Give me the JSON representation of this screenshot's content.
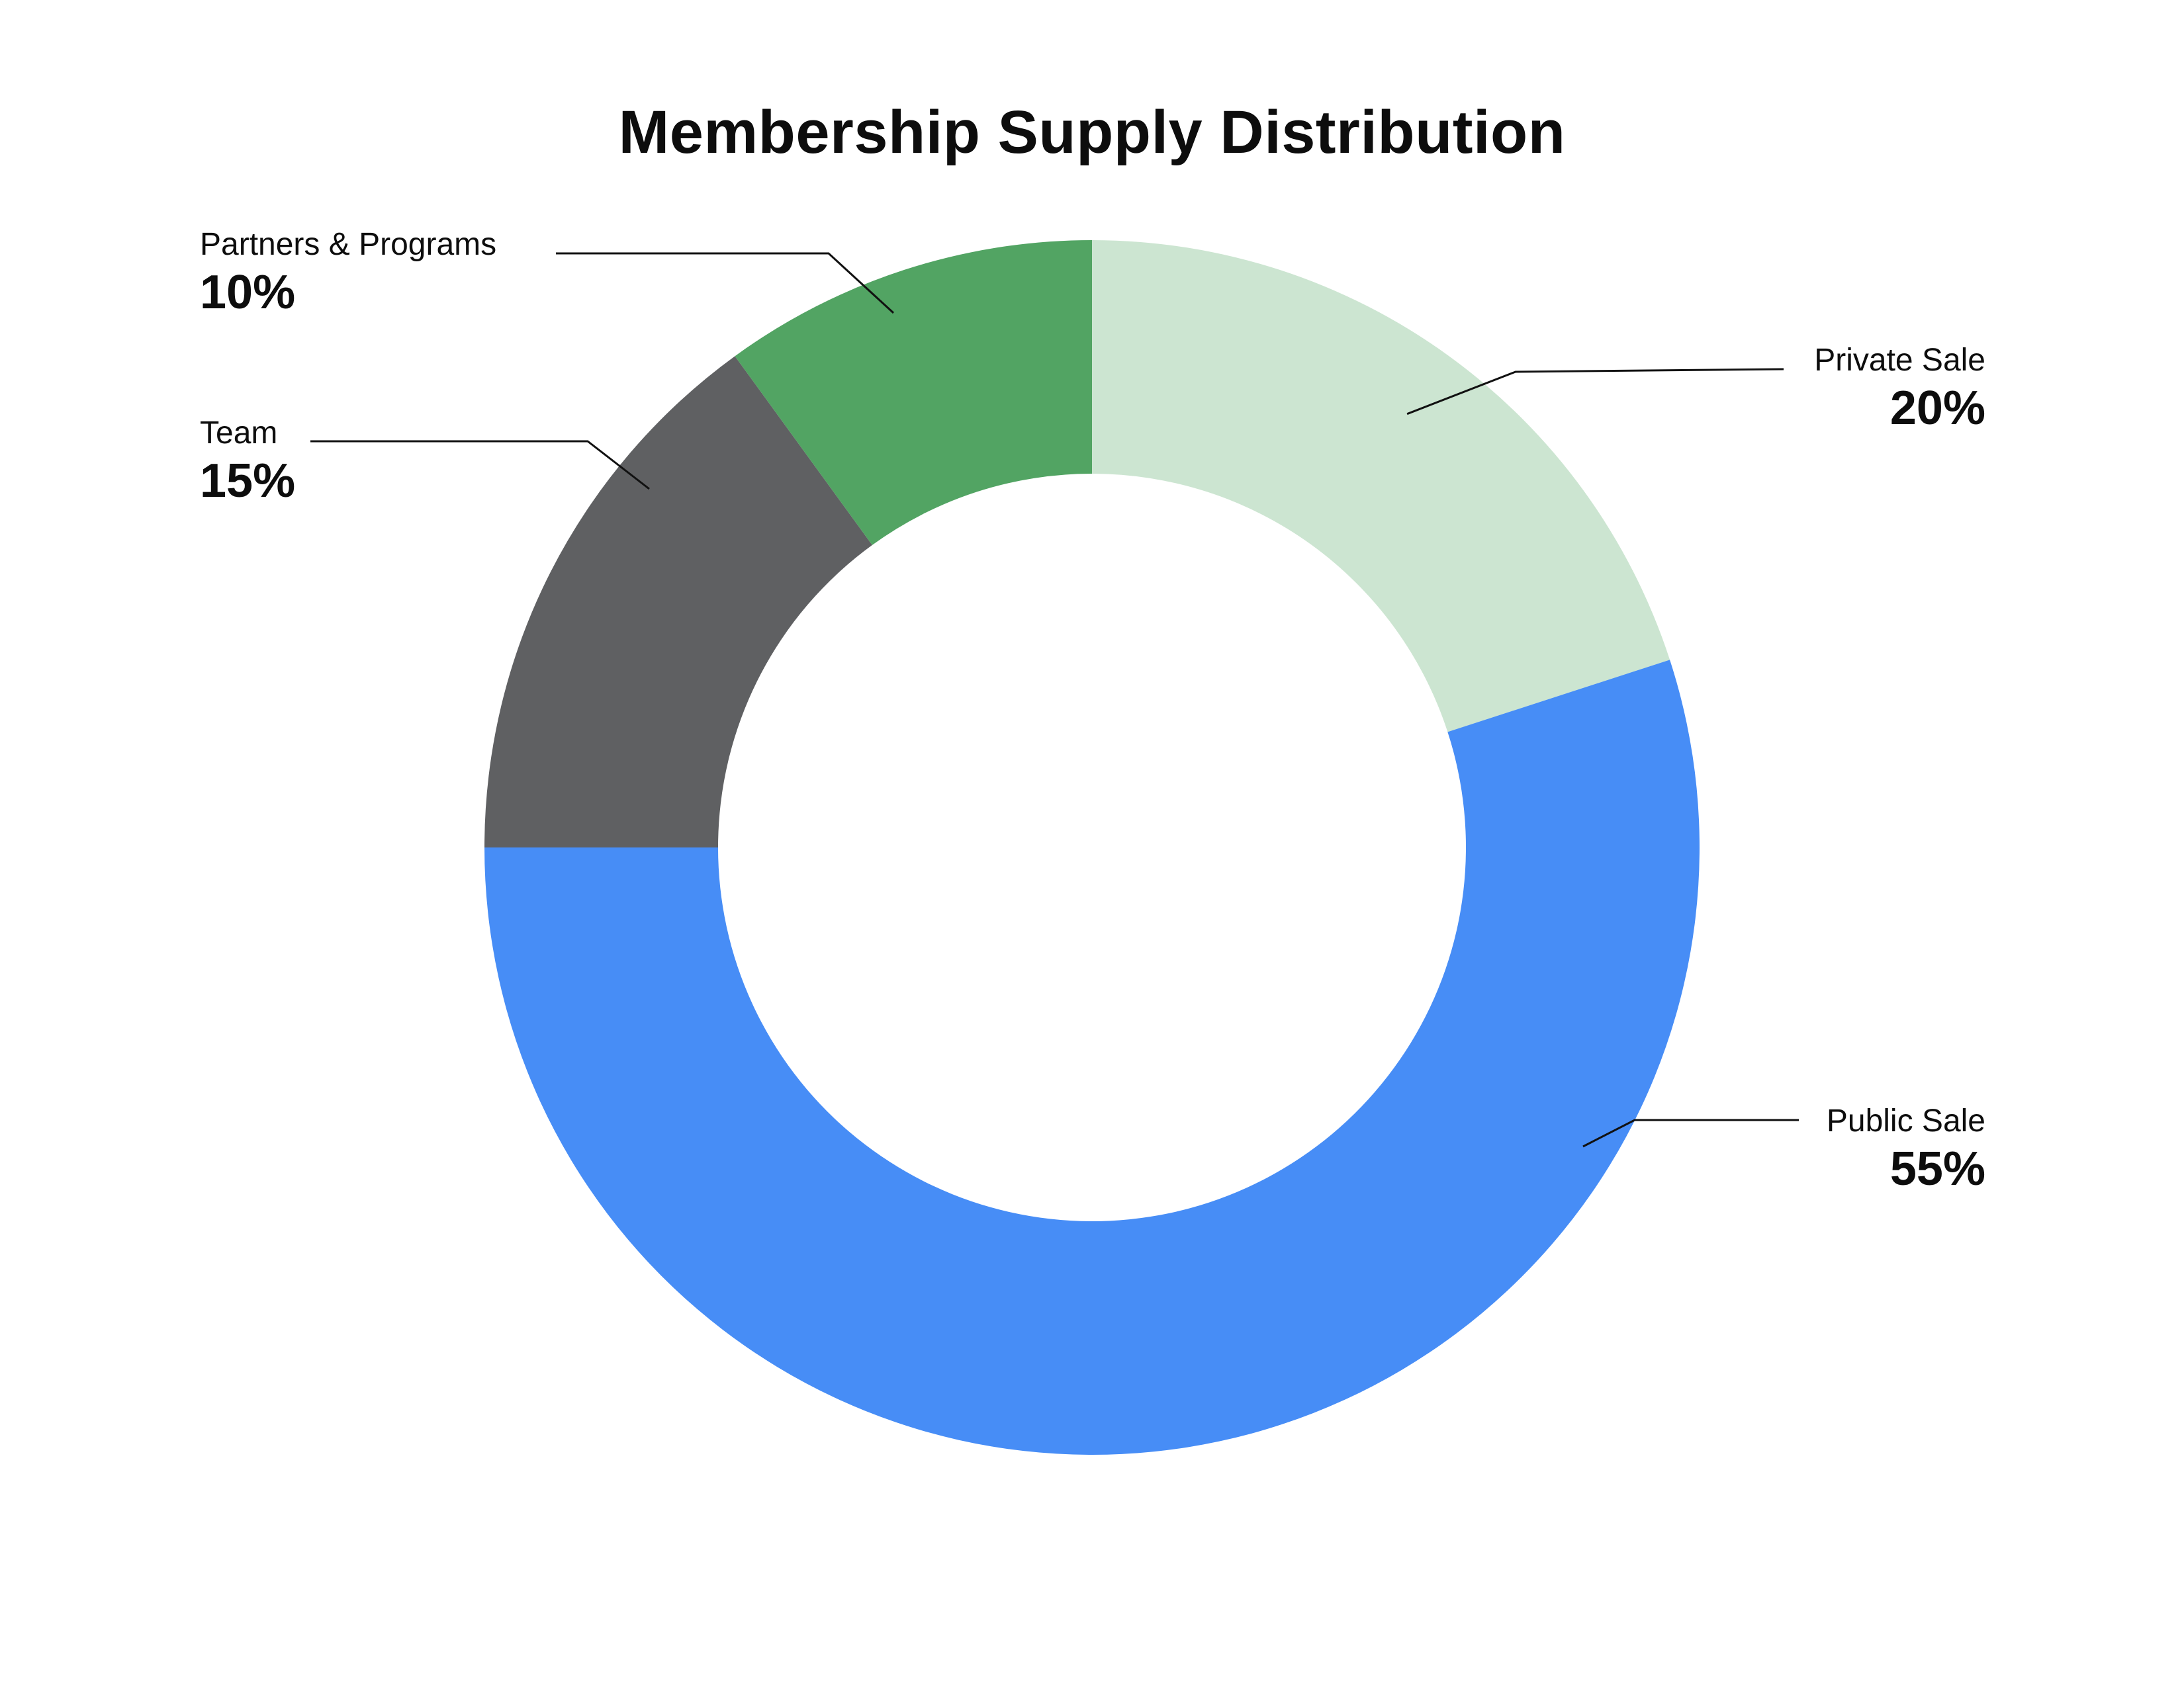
{
  "chart_data": {
    "type": "pie",
    "variant": "donut",
    "title": "Membership Supply Distribution",
    "categories": [
      "Private Sale",
      "Public Sale",
      "Team",
      "Partners & Programs"
    ],
    "values": [
      20,
      55,
      15,
      10
    ],
    "value_labels": [
      "20%",
      "55%",
      "15%",
      "10%"
    ],
    "colors": [
      "#cce5d1",
      "#478df6",
      "#5f6062",
      "#52a463"
    ],
    "start_angle": "12 o'clock",
    "direction": "clockwise",
    "legend": "leader-line callouts"
  }
}
